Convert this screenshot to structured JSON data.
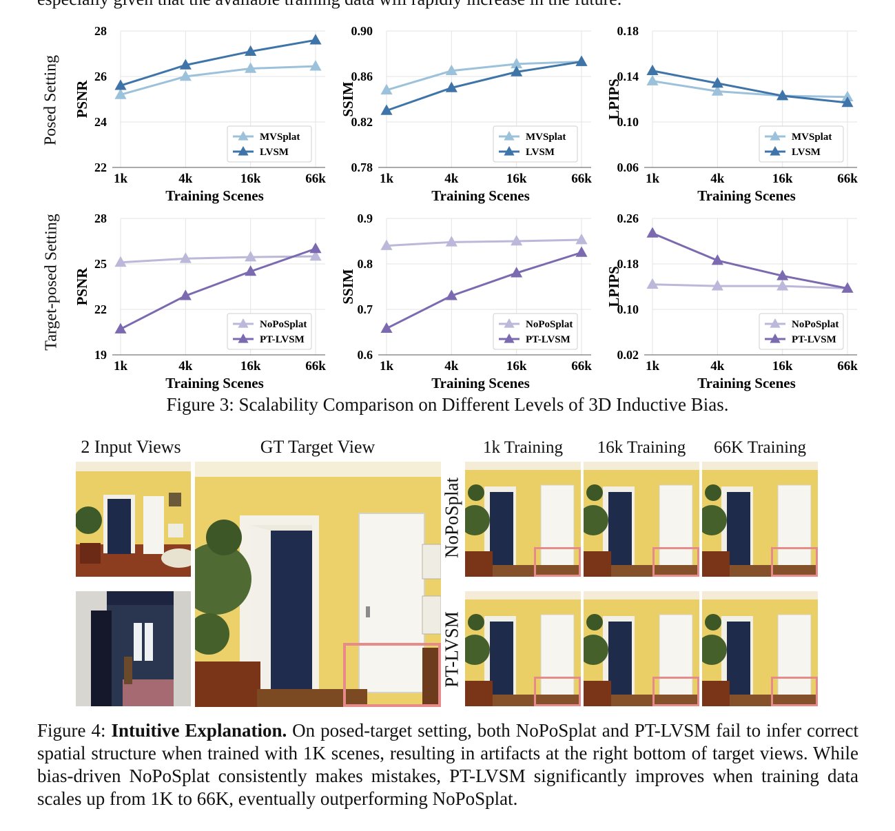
{
  "top_text": "especially given that the available training data will rapidly increase in the future.",
  "row_labels": [
    "Posed Setting",
    "Target-posed Setting"
  ],
  "figure3_caption": "Figure 3: Scalability Comparison on Different Levels of 3D Inductive Bias.",
  "chart_data": [
    {
      "type": "line",
      "ylabel": "PSNR",
      "xlabel": "Training Scenes",
      "categories": [
        "1k",
        "4k",
        "16k",
        "66k"
      ],
      "ylim": [
        22,
        28
      ],
      "yticks": [
        "22",
        "24",
        "26",
        "28"
      ],
      "legend": "bottom-right",
      "grid": true,
      "series": [
        {
          "name": "MVSplat",
          "color": "#9cc1da",
          "values": [
            25.2,
            26.0,
            26.35,
            26.45
          ]
        },
        {
          "name": "LVSM",
          "color": "#3f74a8",
          "values": [
            25.6,
            26.5,
            27.1,
            27.6
          ]
        }
      ]
    },
    {
      "type": "line",
      "ylabel": "SSIM",
      "xlabel": "Training Scenes",
      "categories": [
        "1k",
        "4k",
        "16k",
        "66k"
      ],
      "ylim": [
        0.78,
        0.9
      ],
      "yticks": [
        "0.78",
        "0.82",
        "0.86",
        "0.90"
      ],
      "legend": "bottom-right",
      "grid": true,
      "series": [
        {
          "name": "MVSplat",
          "color": "#9cc1da",
          "values": [
            0.848,
            0.865,
            0.871,
            0.873
          ]
        },
        {
          "name": "LVSM",
          "color": "#3f74a8",
          "values": [
            0.83,
            0.85,
            0.864,
            0.873
          ]
        }
      ]
    },
    {
      "type": "line",
      "ylabel": "LPIPS",
      "xlabel": "Training Scenes",
      "categories": [
        "1k",
        "4k",
        "16k",
        "66k"
      ],
      "ylim": [
        0.06,
        0.18
      ],
      "yticks": [
        "0.06",
        "0.10",
        "0.14",
        "0.18"
      ],
      "legend": "bottom-right",
      "grid": true,
      "series": [
        {
          "name": "MVSplat",
          "color": "#9cc1da",
          "values": [
            0.136,
            0.127,
            0.123,
            0.122
          ]
        },
        {
          "name": "LVSM",
          "color": "#3f74a8",
          "values": [
            0.145,
            0.134,
            0.123,
            0.117
          ]
        }
      ]
    },
    {
      "type": "line",
      "ylabel": "PSNR",
      "xlabel": "Training Scenes",
      "categories": [
        "1k",
        "4k",
        "16k",
        "66k"
      ],
      "ylim": [
        19,
        28
      ],
      "yticks": [
        "19",
        "22",
        "25",
        "28"
      ],
      "legend": "bottom-right",
      "grid": true,
      "series": [
        {
          "name": "NoPoSplat",
          "color": "#bbb8d9",
          "values": [
            25.1,
            25.35,
            25.45,
            25.5
          ]
        },
        {
          "name": "PT-LVSM",
          "color": "#7b6ab0",
          "values": [
            20.7,
            22.9,
            24.5,
            26.0
          ]
        }
      ]
    },
    {
      "type": "line",
      "ylabel": "SSIM",
      "xlabel": "Training Scenes",
      "categories": [
        "1k",
        "4k",
        "16k",
        "66k"
      ],
      "ylim": [
        0.6,
        0.9
      ],
      "yticks": [
        "0.6",
        "0.7",
        "0.8",
        "0.9"
      ],
      "legend": "bottom-right",
      "grid": true,
      "series": [
        {
          "name": "NoPoSplat",
          "color": "#bbb8d9",
          "values": [
            0.84,
            0.848,
            0.85,
            0.853
          ]
        },
        {
          "name": "PT-LVSM",
          "color": "#7b6ab0",
          "values": [
            0.658,
            0.73,
            0.78,
            0.825
          ]
        }
      ]
    },
    {
      "type": "line",
      "ylabel": "LPIPS",
      "xlabel": "Training Scenes",
      "categories": [
        "1k",
        "4k",
        "16k",
        "66k"
      ],
      "ylim": [
        0.02,
        0.26
      ],
      "yticks": [
        "0.02",
        "0.10",
        "0.18",
        "0.26"
      ],
      "legend": "bottom-right",
      "grid": true,
      "series": [
        {
          "name": "NoPoSplat",
          "color": "#bbb8d9",
          "values": [
            0.144,
            0.141,
            0.141,
            0.137
          ]
        },
        {
          "name": "PT-LVSM",
          "color": "#7b6ab0",
          "values": [
            0.234,
            0.186,
            0.159,
            0.137
          ]
        }
      ]
    }
  ],
  "figure4": {
    "col_input": "2 Input Views",
    "col_gt": "GT Target View",
    "col_1k": "1k Training",
    "col_16k": "16k Training",
    "col_66k": "66K Training",
    "row_nopo": "NoPoSplat",
    "row_ptlvsm": "PT-LVSM"
  },
  "figure4_caption": {
    "prefix": "Figure 4: ",
    "bold": "Intuitive Explanation.",
    "body": " On posed-target setting, both NoPoSplat and PT-LVSM fail to infer correct spatial structure when trained with 1K scenes, resulting in artifacts at the right bottom of target views. While bias-driven NoPoSplat consistently makes mistakes, PT-LVSM significantly improves when training data scales up from 1K to 66K, eventually outperforming NoPoSplat."
  }
}
